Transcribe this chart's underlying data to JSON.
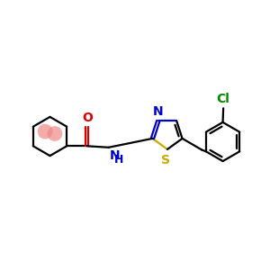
{
  "bg_color": "#ffffff",
  "bond_color": "#000000",
  "n_color": "#0000cc",
  "s_color": "#ccaa00",
  "o_color": "#dd0000",
  "cl_color": "#008800",
  "aromatic_color": "#ee8888",
  "line_width": 1.6,
  "figsize": [
    3.0,
    3.0
  ],
  "dpi": 100,
  "xlim": [
    0,
    10
  ],
  "ylim": [
    2,
    8
  ]
}
